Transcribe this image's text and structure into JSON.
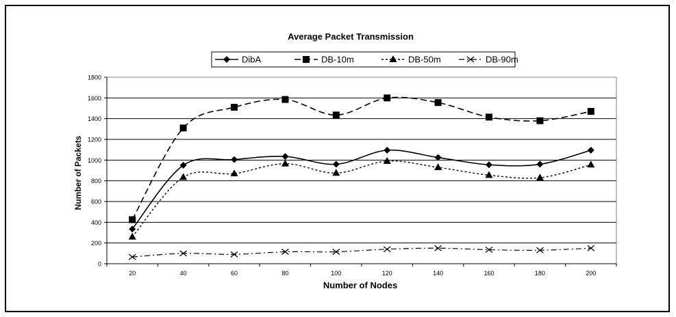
{
  "chart_data": {
    "type": "line",
    "title": "Average Packet Transmission",
    "xlabel": "Number of Nodes",
    "ylabel": "Number of Packets",
    "categories": [
      "20",
      "40",
      "60",
      "80",
      "100",
      "120",
      "140",
      "160",
      "180",
      "200"
    ],
    "ylim": [
      0,
      1800
    ],
    "yticks": [
      0,
      200,
      400,
      600,
      800,
      1000,
      1200,
      1400,
      1600,
      1800
    ],
    "grid": true,
    "legend_position": "top",
    "series": [
      {
        "name": "DibA",
        "marker": "diamond",
        "line_style": "solid",
        "values": [
          335,
          950,
          1005,
          1035,
          960,
          1095,
          1025,
          955,
          960,
          1095
        ]
      },
      {
        "name": "DB-10m",
        "marker": "square",
        "line_style": "dashed",
        "values": [
          425,
          1310,
          1510,
          1585,
          1435,
          1600,
          1555,
          1415,
          1380,
          1470
        ]
      },
      {
        "name": "DB-50m",
        "marker": "triangle",
        "line_style": "dotted",
        "values": [
          260,
          835,
          870,
          965,
          875,
          990,
          930,
          855,
          830,
          955
        ]
      },
      {
        "name": "DB-90m",
        "marker": "x",
        "line_style": "dash-dot",
        "values": [
          65,
          100,
          90,
          115,
          115,
          140,
          150,
          135,
          130,
          150
        ]
      }
    ]
  }
}
